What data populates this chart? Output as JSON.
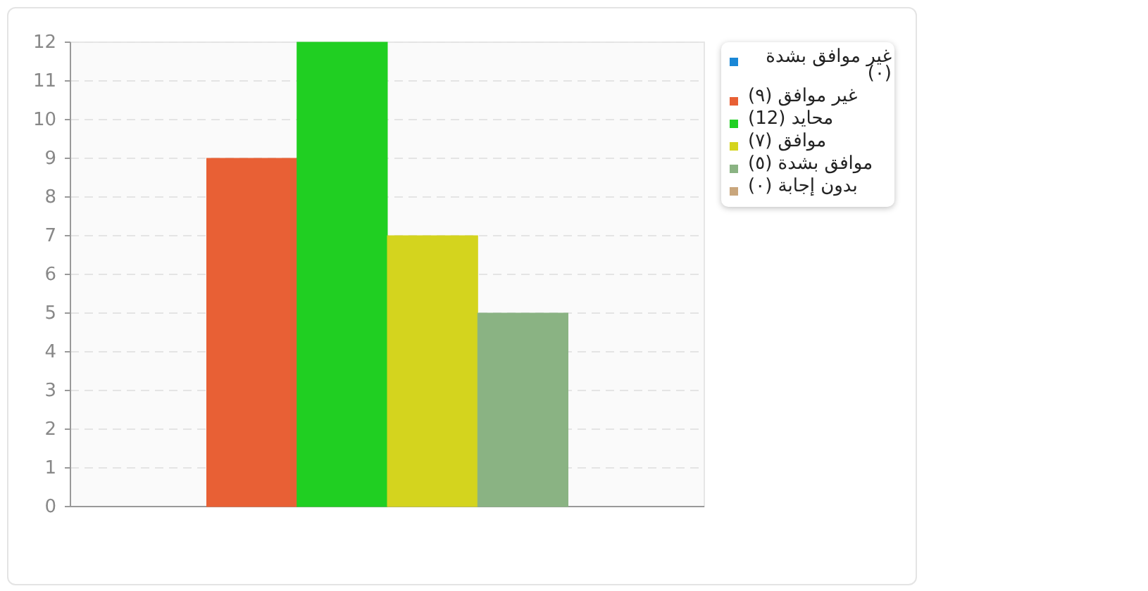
{
  "chart_data": {
    "type": "bar",
    "categories": [
      null
    ],
    "series": [
      {
        "name": "غير موافق بشدة (٠)",
        "color": "#1a87d6",
        "values": [
          0
        ]
      },
      {
        "name": "غير موافق (٩)",
        "color": "#e86035",
        "values": [
          9
        ]
      },
      {
        "name": "محايد (12)",
        "color": "#20cf22",
        "values": [
          12
        ]
      },
      {
        "name": "موافق (٧)",
        "color": "#d4d41e",
        "values": [
          7
        ]
      },
      {
        "name": "موافق بشدة (٥)",
        "color": "#8ab383",
        "values": [
          5
        ]
      },
      {
        "name": "بدون إجابة (٠)",
        "color": "#c9a67c",
        "values": [
          0
        ]
      }
    ],
    "ylim": [
      0,
      12
    ],
    "yticks": [
      0,
      1,
      2,
      3,
      4,
      5,
      6,
      7,
      8,
      9,
      10,
      11,
      12
    ],
    "grid": "y",
    "legend": "right"
  }
}
